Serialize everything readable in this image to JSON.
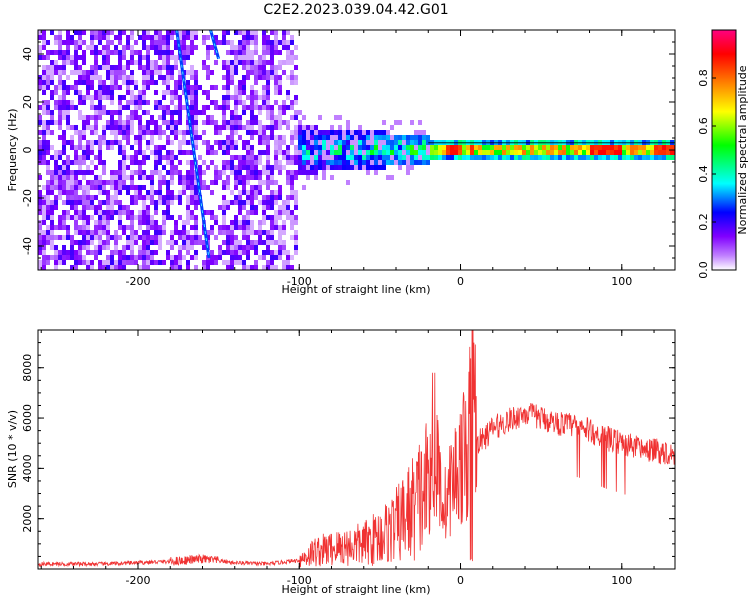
{
  "figure_title": "C2E2.2023.039.04.42.G01",
  "chart_data": [
    {
      "type": "heatmap",
      "name": "spectrogram",
      "xlabel": "Height of straight line (km)",
      "ylabel": "Frequency (Hz)",
      "xlim": [
        -262,
        133
      ],
      "ylim": [
        -50,
        50
      ],
      "xticks": [
        -200,
        -100,
        0,
        100
      ],
      "xtick_labels": [
        "-200",
        "-100",
        "0",
        "100"
      ],
      "yticks": [
        -40,
        -20,
        0,
        20,
        40
      ],
      "ytick_labels": [
        "-40",
        "-20",
        "0",
        "20",
        "40"
      ],
      "colorbar": {
        "label": "Normalized spectral amplitude",
        "range": [
          0,
          1
        ],
        "ticks": [
          0.0,
          0.2,
          0.4,
          0.6,
          0.8
        ],
        "tick_labels": [
          "0.0",
          "0.2",
          "0.4",
          "0.6",
          "0.8"
        ],
        "colormap": [
          "#ffffff",
          "#8000ff",
          "#0000ff",
          "#00ffff",
          "#00ff00",
          "#ffff00",
          "#ff8000",
          "#ff0000",
          "#ff0080"
        ]
      },
      "regions": [
        {
          "x": [
            -262,
            -100
          ],
          "freq": [
            -50,
            50
          ],
          "amplitude": 0.15
        },
        {
          "x": [
            -100,
            -20
          ],
          "freq": [
            -8,
            8
          ],
          "amplitude": 0.4
        },
        {
          "x": [
            -20,
            133
          ],
          "freq": [
            -2,
            2
          ],
          "amplitude": 0.75
        }
      ],
      "streaks": [
        {
          "x": [
            -176,
            -156
          ],
          "freq": [
            50,
            -45
          ]
        },
        {
          "x": [
            -155,
            -150
          ],
          "freq": [
            50,
            38
          ]
        }
      ]
    },
    {
      "type": "line",
      "name": "snr",
      "xlabel": "Height of straight line (km)",
      "ylabel": "SNR (10 * v/v)",
      "xlim": [
        -262,
        133
      ],
      "ylim": [
        0,
        9500
      ],
      "xticks": [
        -200,
        -100,
        0,
        100
      ],
      "xtick_labels": [
        "-200",
        "-100",
        "0",
        "100"
      ],
      "yticks": [
        2000,
        4000,
        6000,
        8000
      ],
      "ytick_labels": [
        "2000",
        "4000",
        "6000",
        "8000"
      ],
      "color": "#f03232",
      "series": [
        {
          "x": [
            -262,
            -250,
            -220,
            -200,
            -180,
            -160,
            -140,
            -120,
            -100,
            -90,
            -80,
            -70,
            -60,
            -50,
            -40,
            -30,
            -20,
            -15,
            -10,
            -5,
            0,
            5,
            8,
            10,
            15,
            20,
            30,
            40,
            50,
            60,
            70,
            80,
            90,
            100,
            110,
            120,
            133
          ],
          "values": [
            200,
            200,
            200,
            250,
            300,
            400,
            250,
            200,
            350,
            700,
            800,
            900,
            1000,
            1300,
            1700,
            2400,
            3300,
            4200,
            2500,
            3500,
            4200,
            4800,
            8800,
            5000,
            5200,
            5600,
            5900,
            6200,
            6000,
            5800,
            5700,
            5500,
            5200,
            5000,
            4800,
            4700,
            4600
          ]
        }
      ]
    }
  ]
}
